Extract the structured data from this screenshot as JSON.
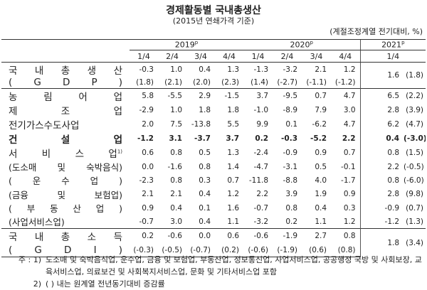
{
  "title": "경제활동별 국내총생산",
  "subtitle": "(2015년 연쇄가격 기준)",
  "unit": "(계절조정계열 전기대비, %)",
  "header": {
    "years": [
      {
        "label": "2019",
        "mark": "p"
      },
      {
        "label": "2020",
        "mark": "p"
      },
      {
        "label": "2021",
        "mark": "p"
      }
    ],
    "quarters": [
      "1/4",
      "2/4",
      "3/4",
      "4/4",
      "1/4",
      "2/4",
      "3/4",
      "4/4",
      "1/4"
    ]
  },
  "groups": [
    {
      "rows": [
        {
          "label": "국 내 총 생 산",
          "values": [
            "-0.3",
            "1.0",
            "0.4",
            "1.3",
            "-1.3",
            "-3.2",
            "2.1",
            "1.2"
          ]
        },
        {
          "label": "( G D P )",
          "values": [
            "(1.8)",
            "(2.1)",
            "(2.0)",
            "(2.3)",
            "(1.4)",
            "(-2.7)",
            "(-1.1)",
            "(-1.2)"
          ]
        }
      ],
      "current": "1.6",
      "current_yoy": "(1.8)"
    },
    {
      "rows": [
        {
          "label": "농 림 어 업",
          "values": [
            "5.8",
            "-5.5",
            "2.9",
            "-1.5",
            "3.7",
            "-9.5",
            "0.7",
            "4.7"
          ],
          "current": "6.5",
          "current_yoy": "(2.2)"
        },
        {
          "label": "제 조 업",
          "values": [
            "-2.9",
            "1.0",
            "1.8",
            "1.8",
            "-1.0",
            "-8.9",
            "7.9",
            "3.0"
          ],
          "current": "2.8",
          "current_yoy": "(3.9)"
        },
        {
          "label": "전기가스수도사업",
          "values": [
            "2.0",
            "7.5",
            "-13.8",
            "5.5",
            "9.9",
            "0.1",
            "-6.2",
            "4.7"
          ],
          "current": "6.2",
          "current_yoy": "(4.7)"
        },
        {
          "label": "건 설 업",
          "bold": true,
          "values": [
            "-1.2",
            "3.1",
            "-3.7",
            "3.7",
            "0.2",
            "-0.3",
            "-5.2",
            "2.2"
          ],
          "current": "0.4",
          "current_yoy": "(-3.0)"
        },
        {
          "label": "서 비 스 업",
          "note": "1)",
          "values": [
            "0.6",
            "0.8",
            "0.5",
            "1.3",
            "-2.4",
            "-0.9",
            "0.9",
            "0.7"
          ],
          "current": "0.8",
          "current_yoy": "(1.5)"
        },
        {
          "label": "(도소매 및 숙박음식)",
          "sub": true,
          "values": [
            "0.0",
            "-1.6",
            "0.8",
            "1.4",
            "-4.7",
            "-3.1",
            "0.5",
            "-0.1"
          ],
          "current": "2.2",
          "current_yoy": "(-0.5)"
        },
        {
          "label": "( 운 수 업 )",
          "sub": true,
          "values": [
            "-2.3",
            "0.8",
            "0.3",
            "0.7",
            "-11.8",
            "-8.8",
            "4.0",
            "-1.7"
          ],
          "current": "0.8",
          "current_yoy": "(-6.0)"
        },
        {
          "label": "(금융 및 보험업)",
          "sub": true,
          "values": [
            "2.1",
            "2.1",
            "0.4",
            "1.2",
            "2.2",
            "3.9",
            "1.9",
            "0.9"
          ],
          "current": "2.8",
          "current_yoy": "(9.8)"
        },
        {
          "label": "( 부 동 산 업 )",
          "sub": true,
          "values": [
            "0.9",
            "0.4",
            "0.1",
            "1.6",
            "-0.7",
            "0.8",
            "0.4",
            "0.3"
          ],
          "current": "-0.9",
          "current_yoy": "(0.7)"
        },
        {
          "label": "(사업서비스업)",
          "sub": true,
          "values": [
            "-0.7",
            "3.0",
            "0.4",
            "1.1",
            "-3.2",
            "0.2",
            "1.1",
            "1.2"
          ],
          "current": "-1.2",
          "current_yoy": "(1.3)"
        }
      ]
    },
    {
      "rows": [
        {
          "label": "국 내 총 소 득",
          "values": [
            "0.2",
            "-0.6",
            "0.0",
            "0.6",
            "-0.6",
            "-1.9",
            "2.7",
            "0.8"
          ]
        },
        {
          "label": "( G D I )",
          "values": [
            "(-0.3)",
            "(-0.5)",
            "(-0.7)",
            "(0.2)",
            "(-0.6)",
            "(-1.9)",
            "(0.6)",
            "(0.8)"
          ]
        }
      ],
      "current": "1.8",
      "current_yoy": "(3.4)"
    }
  ],
  "notes": [
    {
      "marker": "주 : 1)",
      "text": "도소매 및 숙박음식업, 운수업, 금융 및 보험업, 부동산업, 정보통신업, 사업서비스업, 공공행정 국방 및 사회보장, 교육서비스업, 의료보건 및 사회복지서비스업, 문화 및 기타서비스업 포함"
    },
    {
      "marker": "2)",
      "text": "( ) 내는 원계열 전년동기대비 증감률"
    }
  ]
}
